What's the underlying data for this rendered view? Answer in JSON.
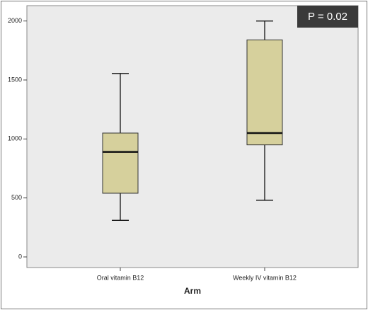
{
  "chart_data": {
    "type": "box",
    "x_label": "Arm",
    "annotation": "P = 0.02",
    "categories": [
      "Oral vitamin B12",
      "Weekly IV vitamin B12"
    ],
    "boxes": [
      {
        "min": 310,
        "q1": 540,
        "median": 890,
        "q3": 1050,
        "max": 1555
      },
      {
        "min": 480,
        "q1": 950,
        "median": 1050,
        "q3": 1840,
        "max": 2000
      }
    ],
    "color": "#d6d09c",
    "ylim": [
      -90,
      2130
    ],
    "yticks": [
      0,
      500,
      1000,
      1500,
      2000
    ]
  }
}
